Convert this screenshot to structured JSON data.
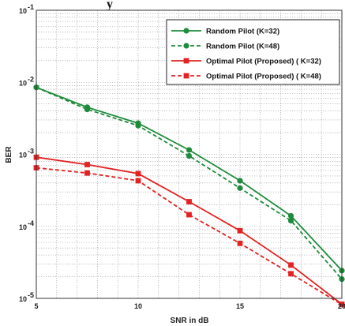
{
  "chart_data": {
    "type": "line",
    "title": "y",
    "xlabel": "SNR in dB",
    "ylabel": "BER",
    "xlim": [
      5,
      20
    ],
    "ylim_exp": [
      -5,
      -1
    ],
    "y_scale": "log",
    "x_ticks": [
      "5",
      "10",
      "15",
      "20"
    ],
    "y_tick_bases": [
      "10",
      "10",
      "10",
      "10",
      "10"
    ],
    "y_tick_exps": [
      "-5",
      "-4",
      "-3",
      "-2",
      "-1"
    ],
    "grid": true,
    "legend_position": "top-right",
    "series": [
      {
        "name": "Random Pilot (K=32)",
        "color": "#1e8c3c",
        "dash": false,
        "marker": "circle",
        "x": [
          5,
          7.5,
          10,
          12.5,
          15,
          17.5,
          20
        ],
        "y": [
          0.0085,
          0.0045,
          0.0027,
          0.00115,
          0.00043,
          0.00014,
          2.43e-05
        ]
      },
      {
        "name": "Random Pilot (K=48)",
        "color": "#1e8c3c",
        "dash": true,
        "marker": "circle",
        "x": [
          5,
          7.5,
          10,
          12.5,
          15,
          17.5,
          20
        ],
        "y": [
          0.0085,
          0.0042,
          0.0025,
          0.00095,
          0.00034,
          0.00012,
          1.85e-05
        ]
      },
      {
        "name": "Optimal Pilot (Proposed) ( K=32)",
        "color": "#e32222",
        "dash": false,
        "marker": "square",
        "x": [
          5,
          7.5,
          10,
          12.5,
          15,
          17.5,
          20
        ],
        "y": [
          0.00091,
          0.00072,
          0.00054,
          0.00022,
          8.7e-05,
          2.9e-05,
          8.3e-06
        ]
      },
      {
        "name": "Optimal Pilot (Proposed) ( K=48)",
        "color": "#e32222",
        "dash": true,
        "marker": "square",
        "x": [
          5,
          7.5,
          10,
          12.5,
          15,
          17.5,
          20
        ],
        "y": [
          0.00065,
          0.00055,
          0.00043,
          0.000145,
          5.8e-05,
          2.2e-05,
          8.2e-06
        ]
      }
    ]
  }
}
